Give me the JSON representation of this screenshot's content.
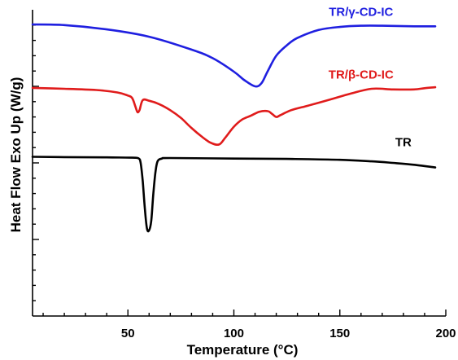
{
  "chart_data": {
    "type": "line",
    "title": "",
    "xlabel": "Temperature (°C)",
    "ylabel": "Heat Flow Exo Up (W/g)",
    "xlim": [
      5,
      200
    ],
    "ylim": [
      0,
      100
    ],
    "x_ticks": [
      50,
      100,
      150,
      200
    ],
    "y_tick_labels": false,
    "grid": false,
    "legend": "none",
    "series": [
      {
        "name": "TR/γ-CD-IC",
        "color": "#1f1fe0",
        "points": [
          [
            5,
            95.2
          ],
          [
            20,
            95.0
          ],
          [
            40,
            93.6
          ],
          [
            60,
            91.2
          ],
          [
            80,
            87.0
          ],
          [
            90,
            84.2
          ],
          [
            100,
            79.8
          ],
          [
            105,
            77.0
          ],
          [
            110,
            75.0
          ],
          [
            113,
            76.0
          ],
          [
            116,
            80.0
          ],
          [
            120,
            85.0
          ],
          [
            125,
            88.4
          ],
          [
            130,
            90.8
          ],
          [
            140,
            93.4
          ],
          [
            150,
            94.4
          ],
          [
            160,
            94.8
          ],
          [
            170,
            94.8
          ],
          [
            185,
            94.6
          ],
          [
            195,
            94.6
          ]
        ]
      },
      {
        "name": "TR/β-CD-IC",
        "color": "#e01b1b",
        "points": [
          [
            5,
            74.5
          ],
          [
            20,
            74.2
          ],
          [
            35,
            73.8
          ],
          [
            45,
            73.0
          ],
          [
            50,
            72.0
          ],
          [
            52,
            71.2
          ],
          [
            53.5,
            68.5
          ],
          [
            54.5,
            66.6
          ],
          [
            55.5,
            67.3
          ],
          [
            57,
            70.5
          ],
          [
            60,
            70.3
          ],
          [
            65,
            69.1
          ],
          [
            70,
            67.2
          ],
          [
            75,
            64.7
          ],
          [
            80,
            61.4
          ],
          [
            85,
            58.5
          ],
          [
            89,
            56.6
          ],
          [
            93,
            56.0
          ],
          [
            96,
            58.3
          ],
          [
            100,
            61.8
          ],
          [
            104,
            64.2
          ],
          [
            108,
            65.4
          ],
          [
            112,
            66.7
          ],
          [
            116,
            66.9
          ],
          [
            118,
            66.0
          ],
          [
            120,
            65.0
          ],
          [
            122,
            65.6
          ],
          [
            127,
            67.2
          ],
          [
            135,
            68.7
          ],
          [
            145,
            70.6
          ],
          [
            155,
            72.6
          ],
          [
            165,
            74.2
          ],
          [
            175,
            74.0
          ],
          [
            185,
            74.0
          ],
          [
            190,
            74.4
          ],
          [
            195,
            74.7
          ]
        ]
      },
      {
        "name": "TR",
        "color": "#000000",
        "points": [
          [
            5,
            52.0
          ],
          [
            20,
            51.9
          ],
          [
            40,
            51.8
          ],
          [
            52,
            51.7
          ],
          [
            55,
            51.5
          ],
          [
            56,
            50.0
          ],
          [
            57,
            44.0
          ],
          [
            58,
            35.0
          ],
          [
            59,
            28.5
          ],
          [
            60,
            28.0
          ],
          [
            61,
            31.0
          ],
          [
            62,
            40.0
          ],
          [
            63,
            47.0
          ],
          [
            64,
            50.5
          ],
          [
            66,
            51.4
          ],
          [
            70,
            51.6
          ],
          [
            100,
            51.4
          ],
          [
            125,
            51.3
          ],
          [
            150,
            51.0
          ],
          [
            165,
            50.5
          ],
          [
            175,
            50.0
          ],
          [
            185,
            49.4
          ],
          [
            195,
            48.5
          ]
        ]
      }
    ],
    "series_labels": [
      {
        "text": "TR/γ-CD-IC",
        "color": "#1f1fe0"
      },
      {
        "text": "TR/β-CD-IC",
        "color": "#e01b1b"
      },
      {
        "text": "TR",
        "color": "#000000"
      }
    ]
  }
}
